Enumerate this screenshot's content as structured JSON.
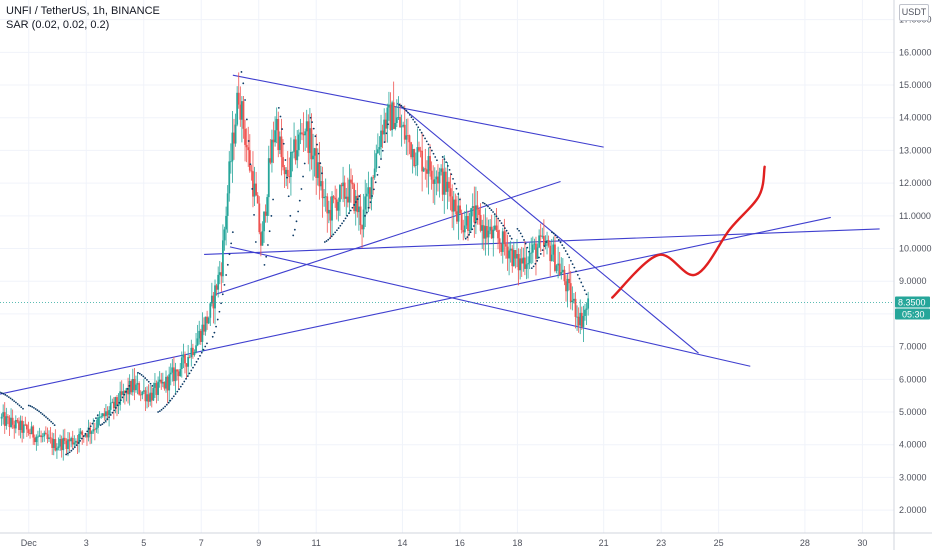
{
  "header": {
    "title": "UNFI / TetherUS, 1h, BINANCE",
    "indicator": "SAR (0.02, 0.02, 0.2)",
    "currency": "USDT"
  },
  "colors": {
    "up": "#26a69a",
    "down": "#ef5350",
    "sar": "#0d3b66",
    "trendline": "#3f3fcf",
    "drawing": "#e02020",
    "price_tag": "#26a69a"
  },
  "chart_data": {
    "type": "candlestick",
    "x_ticks": [
      {
        "day": 1,
        "label": "Dec"
      },
      {
        "day": 3,
        "label": "3"
      },
      {
        "day": 5,
        "label": "5"
      },
      {
        "day": 7,
        "label": "7"
      },
      {
        "day": 9,
        "label": "9"
      },
      {
        "day": 11,
        "label": "11"
      },
      {
        "day": 14,
        "label": "14"
      },
      {
        "day": 16,
        "label": "16"
      },
      {
        "day": 18,
        "label": "18"
      },
      {
        "day": 21,
        "label": "21"
      },
      {
        "day": 23,
        "label": "23"
      },
      {
        "day": 25,
        "label": "25"
      },
      {
        "day": 28,
        "label": "28"
      },
      {
        "day": 30,
        "label": "30"
      }
    ],
    "y_ticks": [
      "2.0000",
      "3.0000",
      "4.0000",
      "5.0000",
      "6.0000",
      "7.0000",
      "8.0000",
      "9.0000",
      "10.0000",
      "11.0000",
      "12.0000",
      "13.0000",
      "14.0000",
      "15.0000",
      "16.0000",
      "17.0000"
    ],
    "ylim": [
      1.3,
      17.6
    ],
    "xlim": [
      0.0,
      31.1
    ],
    "last_price": "8.3500",
    "last_value": 8.35,
    "countdown": "05:30",
    "path_anchors": [
      [
        0.0,
        4.8
      ],
      [
        1.0,
        4.4
      ],
      [
        1.9,
        4.0
      ],
      [
        2.6,
        4.15
      ],
      [
        3.2,
        4.5
      ],
      [
        4.0,
        5.2
      ],
      [
        4.6,
        5.8
      ],
      [
        5.2,
        5.5
      ],
      [
        5.8,
        5.9
      ],
      [
        6.4,
        6.5
      ],
      [
        6.9,
        7.3
      ],
      [
        7.3,
        8.0
      ],
      [
        7.7,
        9.5
      ],
      [
        8.0,
        12.5
      ],
      [
        8.3,
        14.8
      ],
      [
        8.6,
        13.0
      ],
      [
        8.9,
        11.5
      ],
      [
        9.1,
        10.0
      ],
      [
        9.3,
        12.0
      ],
      [
        9.6,
        14.0
      ],
      [
        9.9,
        12.0
      ],
      [
        10.2,
        12.8
      ],
      [
        10.6,
        13.8
      ],
      [
        11.0,
        12.5
      ],
      [
        11.4,
        11.0
      ],
      [
        11.7,
        11.5
      ],
      [
        12.2,
        11.8
      ],
      [
        12.6,
        10.8
      ],
      [
        13.0,
        12.5
      ],
      [
        13.3,
        13.8
      ],
      [
        13.7,
        14.1
      ],
      [
        14.0,
        13.6
      ],
      [
        14.4,
        13.0
      ],
      [
        14.8,
        12.6
      ],
      [
        15.3,
        12.2
      ],
      [
        15.7,
        11.6
      ],
      [
        16.1,
        10.8
      ],
      [
        16.5,
        11.0
      ],
      [
        16.9,
        10.5
      ],
      [
        17.3,
        10.3
      ],
      [
        17.7,
        10.0
      ],
      [
        18.0,
        9.5
      ],
      [
        18.4,
        9.8
      ],
      [
        18.8,
        10.1
      ],
      [
        19.2,
        9.9
      ],
      [
        19.6,
        9.1
      ],
      [
        19.9,
        8.4
      ],
      [
        20.2,
        7.8
      ],
      [
        20.5,
        8.35
      ]
    ],
    "sar_segments": [
      [
        [
          0.0,
          5.6
        ],
        [
          0.8,
          5.1
        ]
      ],
      [
        [
          1.0,
          5.2
        ],
        [
          1.9,
          4.6
        ]
      ],
      [
        [
          2.3,
          3.7
        ],
        [
          3.4,
          4.9
        ]
      ],
      [
        [
          3.5,
          4.6
        ],
        [
          4.5,
          5.8
        ]
      ],
      [
        [
          4.8,
          6.2
        ],
        [
          5.3,
          5.8
        ]
      ],
      [
        [
          5.5,
          5.0
        ],
        [
          7.2,
          7.1
        ]
      ],
      [
        [
          7.4,
          7.3
        ],
        [
          8.1,
          10.5
        ]
      ],
      [
        [
          8.4,
          15.4
        ],
        [
          8.9,
          10.2
        ]
      ],
      [
        [
          9.2,
          9.5
        ],
        [
          9.5,
          11.5
        ]
      ],
      [
        [
          9.7,
          14.3
        ],
        [
          10.1,
          11.0
        ]
      ],
      [
        [
          10.2,
          10.4
        ],
        [
          10.6,
          12.6
        ]
      ],
      [
        [
          10.8,
          14.0
        ],
        [
          11.2,
          12.3
        ]
      ],
      [
        [
          11.3,
          10.2
        ],
        [
          12.5,
          11.6
        ]
      ],
      [
        [
          12.7,
          11.0
        ],
        [
          13.5,
          13.8
        ]
      ],
      [
        [
          13.9,
          14.4
        ],
        [
          15.2,
          12.7
        ]
      ],
      [
        [
          15.4,
          12.8
        ],
        [
          16.0,
          11.5
        ]
      ],
      [
        [
          16.2,
          10.3
        ],
        [
          16.6,
          10.9
        ]
      ],
      [
        [
          16.8,
          11.4
        ],
        [
          17.8,
          10.3
        ]
      ],
      [
        [
          18.0,
          10.6
        ],
        [
          18.4,
          9.9
        ]
      ],
      [
        [
          18.5,
          9.4
        ],
        [
          19.0,
          10.2
        ]
      ],
      [
        [
          19.2,
          10.5
        ],
        [
          20.4,
          8.6
        ]
      ]
    ],
    "trendlines": [
      [
        [
          0.0,
          5.55
        ],
        [
          28.9,
          10.95
        ]
      ],
      [
        [
          7.5,
          8.6
        ],
        [
          19.5,
          12.05
        ]
      ],
      [
        [
          7.1,
          9.82
        ],
        [
          30.6,
          10.6
        ]
      ],
      [
        [
          8.1,
          15.3
        ],
        [
          21.0,
          13.1
        ]
      ],
      [
        [
          13.8,
          14.45
        ],
        [
          24.3,
          6.8
        ]
      ],
      [
        [
          8.0,
          10.05
        ],
        [
          26.1,
          6.4
        ]
      ]
    ],
    "drawing": [
      [
        21.3,
        8.5
      ],
      [
        22.9,
        9.8
      ],
      [
        24.2,
        9.2
      ],
      [
        25.4,
        10.6
      ],
      [
        26.4,
        11.6
      ],
      [
        26.6,
        12.5
      ]
    ]
  }
}
